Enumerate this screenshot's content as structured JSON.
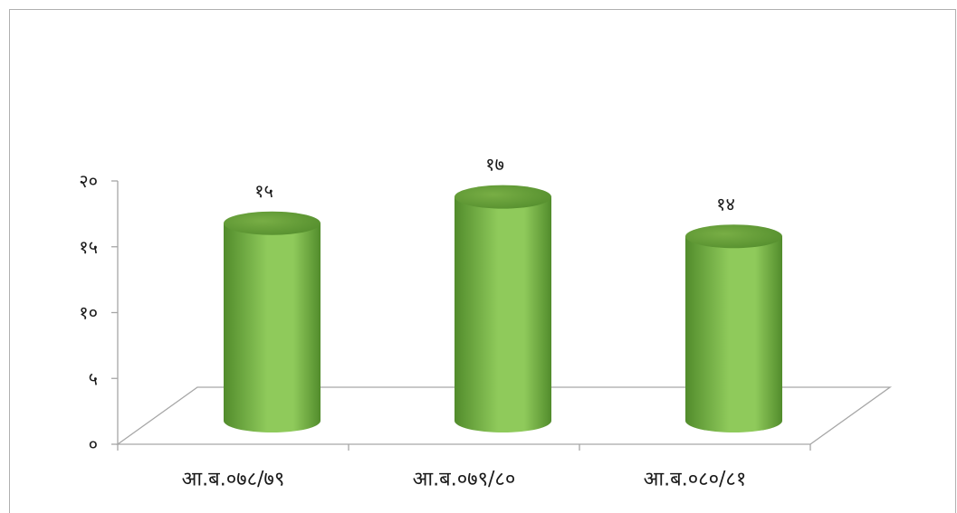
{
  "chart_data": {
    "type": "bar",
    "bar_shape": "cylinder",
    "3d": true,
    "categories": [
      "आ.ब.०७८/७९",
      "आ.ब.०७९/८०",
      "आ.ब.०८०/८१"
    ],
    "values": [
      15,
      17,
      14
    ],
    "data_labels": [
      "१५",
      "१७",
      "१४"
    ],
    "ylim": [
      0,
      20
    ],
    "yticks": [
      0,
      5,
      10,
      15,
      20
    ],
    "ytick_labels": [
      "०",
      "५",
      "१०",
      "१५",
      "२०"
    ],
    "grid": false,
    "legend": false
  },
  "colors": {
    "bar_dark": "#528c2c",
    "bar_mid": "#8fca5b",
    "bar_top": "#78ae45",
    "axis_line": "#a6a6a6",
    "frame_line": "#b0b0b0",
    "text": "#1a1a1a"
  }
}
